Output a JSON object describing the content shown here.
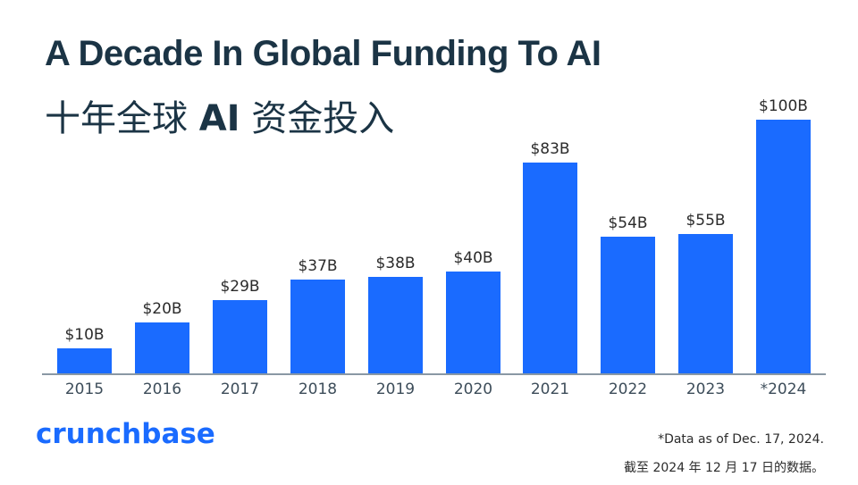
{
  "header": {
    "title": "A Decade In Global Funding To AI",
    "subtitle_pre": "十年全球",
    "subtitle_bold": "AI",
    "subtitle_post": "资金投入"
  },
  "footer": {
    "logo": "crunchbase",
    "note_en": "*Data as of Dec. 17, 2024.",
    "note_zh": "截至 2024 年 12 月 17 日的数据。"
  },
  "colors": {
    "bar": "#1a6bff",
    "title": "#1b3445",
    "logo": "#1a6bff"
  },
  "chart_data": {
    "type": "bar",
    "title": "A Decade In Global Funding To AI",
    "subtitle": "十年全球 AI 资金投入",
    "categories": [
      "2015",
      "2016",
      "2017",
      "2018",
      "2019",
      "2020",
      "2021",
      "2022",
      "2023",
      "*2024"
    ],
    "values": [
      10,
      20,
      29,
      37,
      38,
      40,
      83,
      54,
      55,
      100
    ],
    "labels": [
      "$10B",
      "$20B",
      "$29B",
      "$37B",
      "$38B",
      "$40B",
      "$83B",
      "$54B",
      "$55B",
      "$100B"
    ],
    "unit": "USD billions",
    "xlabel": "",
    "ylabel": "",
    "ylim": [
      0,
      100
    ],
    "grid": false,
    "legend": null,
    "annotations": [
      "*Data as of Dec. 17, 2024.",
      "截至 2024 年 12 月 17 日的数据。"
    ]
  }
}
